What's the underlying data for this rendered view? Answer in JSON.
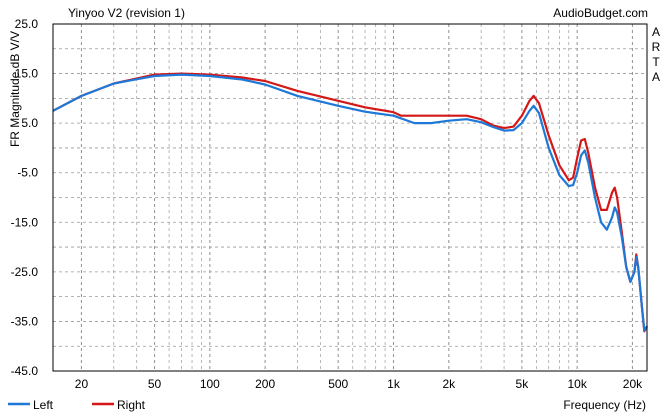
{
  "chart_data": {
    "type": "line",
    "title": "Yinyoo V2 (revision 1)",
    "source_label": "AudioBudget.com",
    "side_label": [
      "A",
      "R",
      "T",
      "A"
    ],
    "ylabel": "FR Magnitude dB V/V",
    "xlabel": "Frequency (Hz)",
    "x_scale": "log",
    "xlim": [
      14,
      24000
    ],
    "ylim": [
      -45,
      25
    ],
    "grid": true,
    "y_ticks": [
      "25.0",
      "15.0",
      "5.0",
      "-5.0",
      "-15.0",
      "-25.0",
      "-35.0",
      "-45.0"
    ],
    "y_tick_values": [
      25,
      15,
      5,
      -5,
      -15,
      -25,
      -35,
      -45
    ],
    "x_ticks": [
      "20",
      "50",
      "100",
      "200",
      "500",
      "1k",
      "2k",
      "5k",
      "10k",
      "20k"
    ],
    "x_tick_values": [
      20,
      50,
      100,
      200,
      500,
      1000,
      2000,
      5000,
      10000,
      20000
    ],
    "legend_position": "bottom-left",
    "series": [
      {
        "name": "Left",
        "color": "#1e78d7",
        "points": [
          [
            14,
            7.5
          ],
          [
            20,
            10.5
          ],
          [
            30,
            13
          ],
          [
            50,
            14.5
          ],
          [
            70,
            14.8
          ],
          [
            100,
            14.5
          ],
          [
            150,
            13.8
          ],
          [
            200,
            12.8
          ],
          [
            300,
            10.5
          ],
          [
            500,
            8.5
          ],
          [
            700,
            7.3
          ],
          [
            1000,
            6.5
          ],
          [
            1300,
            5.0
          ],
          [
            1600,
            5.0
          ],
          [
            2000,
            5.5
          ],
          [
            2500,
            5.8
          ],
          [
            3000,
            5.2
          ],
          [
            3500,
            4.2
          ],
          [
            4000,
            3.5
          ],
          [
            4500,
            3.6
          ],
          [
            5000,
            5.0
          ],
          [
            5500,
            7.5
          ],
          [
            5800,
            8.5
          ],
          [
            6200,
            7.0
          ],
          [
            7000,
            0
          ],
          [
            8000,
            -5.5
          ],
          [
            9000,
            -7.7
          ],
          [
            9500,
            -7.5
          ],
          [
            10000,
            -5
          ],
          [
            10500,
            -1.5
          ],
          [
            11000,
            -0.5
          ],
          [
            11500,
            -3
          ],
          [
            12500,
            -10
          ],
          [
            13500,
            -15
          ],
          [
            14500,
            -16.5
          ],
          [
            15500,
            -14
          ],
          [
            16000,
            -12
          ],
          [
            16500,
            -13
          ],
          [
            17500,
            -18
          ],
          [
            18500,
            -24
          ],
          [
            19500,
            -27
          ],
          [
            20500,
            -25
          ],
          [
            21000,
            -22
          ],
          [
            21500,
            -24
          ],
          [
            22500,
            -32
          ],
          [
            23200,
            -36.8
          ],
          [
            24000,
            -36
          ]
        ]
      },
      {
        "name": "Right",
        "color": "#d41717",
        "points": [
          [
            14,
            7.5
          ],
          [
            20,
            10.5
          ],
          [
            30,
            13
          ],
          [
            50,
            14.8
          ],
          [
            70,
            15.0
          ],
          [
            100,
            14.8
          ],
          [
            150,
            14.2
          ],
          [
            200,
            13.5
          ],
          [
            300,
            11.5
          ],
          [
            500,
            9.5
          ],
          [
            700,
            8.2
          ],
          [
            1000,
            7.2
          ],
          [
            1100,
            6.5
          ],
          [
            1500,
            6.5
          ],
          [
            2000,
            6.5
          ],
          [
            2500,
            6.5
          ],
          [
            3000,
            5.8
          ],
          [
            3500,
            4.5
          ],
          [
            4000,
            4.0
          ],
          [
            4500,
            4.3
          ],
          [
            5000,
            6.5
          ],
          [
            5500,
            9.5
          ],
          [
            5800,
            10.5
          ],
          [
            6200,
            9.0
          ],
          [
            7000,
            2.5
          ],
          [
            8000,
            -3.5
          ],
          [
            9000,
            -6.5
          ],
          [
            9500,
            -6
          ],
          [
            10000,
            -2
          ],
          [
            10500,
            1.5
          ],
          [
            11000,
            1.8
          ],
          [
            11500,
            -1
          ],
          [
            12500,
            -8
          ],
          [
            13500,
            -12.5
          ],
          [
            14500,
            -12.5
          ],
          [
            15500,
            -9
          ],
          [
            16000,
            -8
          ],
          [
            16500,
            -10
          ],
          [
            17500,
            -17
          ],
          [
            18500,
            -24
          ],
          [
            19500,
            -27
          ],
          [
            20500,
            -25
          ],
          [
            21000,
            -21.5
          ],
          [
            21500,
            -24
          ],
          [
            22500,
            -32
          ],
          [
            23200,
            -37
          ],
          [
            24000,
            -36
          ]
        ]
      }
    ]
  }
}
